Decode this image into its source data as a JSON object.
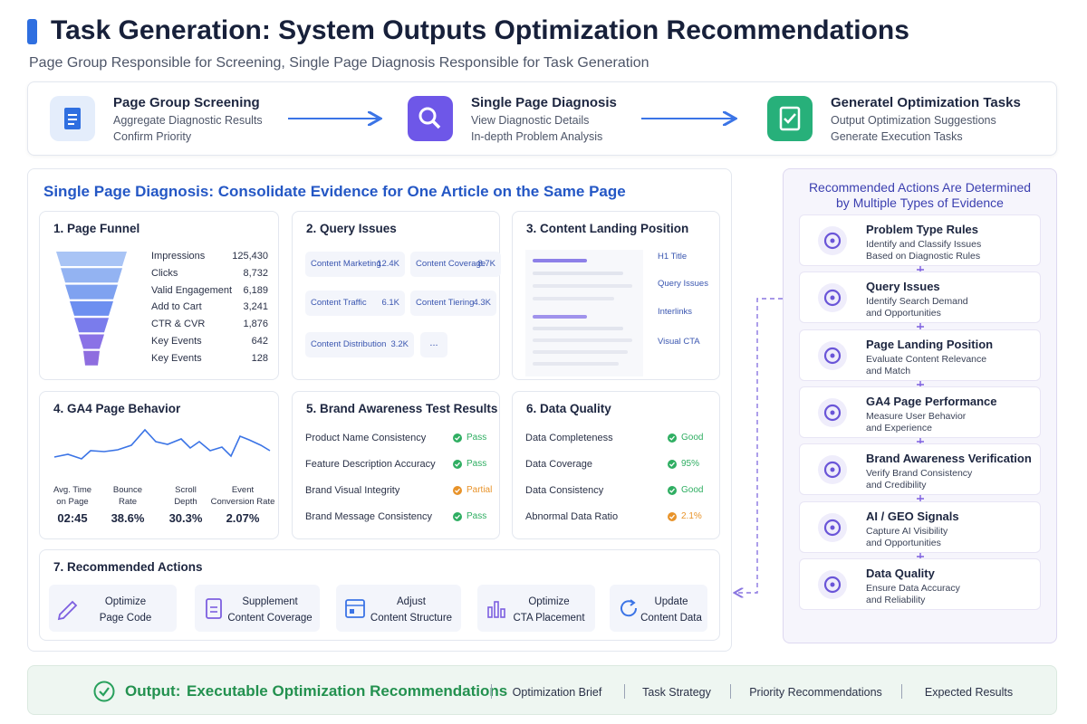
{
  "header": {
    "title": "Task Generation: System Outputs Optimization Recommendations",
    "subtitle": "Page Group Responsible for Screening, Single Page Diagnosis Responsible for Task Generation"
  },
  "flow": [
    {
      "title": "Page Group Screening",
      "lines": [
        "Aggregate Diagnostic Results",
        "Confirm Priority"
      ]
    },
    {
      "title": "Single Page Diagnosis",
      "lines": [
        "View Diagnostic Details",
        "In-depth Problem Analysis"
      ]
    },
    {
      "title": "Generatel Optimization Tasks",
      "lines": [
        "Output Optimization Suggestions",
        "Generate Execution Tasks"
      ]
    }
  ],
  "diagnosis": {
    "title": "Single Page Diagnosis: Consolidate Evidence for One Article on the Same Page",
    "funnel": {
      "title": "1. Page Funnel",
      "rows": [
        {
          "label": "Impressions",
          "value": "125,430"
        },
        {
          "label": "Clicks",
          "value": "8,732"
        },
        {
          "label": "Valid Engagement",
          "value": "6,189"
        },
        {
          "label": "Add to Cart",
          "value": "3,241"
        },
        {
          "label": "CTR & CVR",
          "value": "1,876"
        },
        {
          "label": "Key Events",
          "value": "642"
        },
        {
          "label": "Key Events",
          "value": "128"
        }
      ]
    },
    "query": {
      "title": "2. Query Issues",
      "items": [
        {
          "label": "Content Marketing",
          "value": "12.4K"
        },
        {
          "label": "Content Coverage",
          "value": "8.7K"
        },
        {
          "label": "Content Traffic",
          "value": "6.1K"
        },
        {
          "label": "Content Tiering",
          "value": "4.3K"
        },
        {
          "label": "Content Distribution",
          "value": "3.2K"
        }
      ],
      "more": "..."
    },
    "landing": {
      "title": "3. Content Landing Position",
      "labels": [
        "H1 Title",
        "Query Issues",
        "Interlinks",
        "Visual CTA"
      ]
    },
    "ga4": {
      "title": "4. GA4 Page Behavior",
      "metrics": [
        {
          "label": [
            "Avg. Time",
            "on Page"
          ],
          "value": "02:45"
        },
        {
          "label": [
            "Bounce",
            "Rate"
          ],
          "value": "38.6%"
        },
        {
          "label": [
            "Scroll",
            "Depth"
          ],
          "value": "30.3%"
        },
        {
          "label": [
            "Event",
            "Conversion Rate"
          ],
          "value": "2.07%"
        }
      ]
    },
    "brand": {
      "title": "5. Brand Awareness Test Results",
      "rows": [
        {
          "label": "Product Name Consistency",
          "status": "Pass",
          "color": "#2fae62"
        },
        {
          "label": "Feature Description Accuracy",
          "status": "Pass",
          "color": "#2fae62"
        },
        {
          "label": "Brand Visual Integrity",
          "status": "Partial",
          "color": "#e8932a"
        },
        {
          "label": "Brand Message Consistency",
          "status": "Pass",
          "color": "#2fae62"
        }
      ]
    },
    "quality": {
      "title": "6. Data Quality",
      "rows": [
        {
          "label": "Data Completeness",
          "status": "Good",
          "color": "#2fae62"
        },
        {
          "label": "Data Coverage",
          "status": "95%",
          "color": "#2fae62"
        },
        {
          "label": "Data Consistency",
          "status": "Good",
          "color": "#2fae62"
        },
        {
          "label": "Abnormal Data Ratio",
          "status": "2.1%",
          "color": "#e8932a"
        }
      ]
    },
    "actions": {
      "title": "7. Recommended Actions",
      "items": [
        [
          "Optimize",
          "Page Code"
        ],
        [
          "Supplement",
          "Content Coverage"
        ],
        [
          "Adjust",
          "Content Structure"
        ],
        [
          "Optimize",
          "CTA Placement"
        ],
        [
          "Update",
          "Content Data"
        ]
      ]
    }
  },
  "evidence": {
    "title": "Recommended Actions Are Determined by Multiple Types of Evidence",
    "items": [
      {
        "title": "Problem Type Rules",
        "lines": [
          "Identify and Classify Issues",
          "Based on Diagnostic Rules"
        ]
      },
      {
        "title": "Query Issues",
        "lines": [
          "Identify Search Demand",
          "and Opportunities"
        ]
      },
      {
        "title": "Page Landing Position",
        "lines": [
          "Evaluate Content Relevance",
          "and Match"
        ]
      },
      {
        "title": "GA4 Page Performance",
        "lines": [
          "Measure User Behavior",
          "and Experience"
        ]
      },
      {
        "title": "Brand Awareness Verification",
        "lines": [
          "Verify Brand Consistency",
          "and Credibility"
        ]
      },
      {
        "title": "AI / GEO Signals",
        "lines": [
          "Capture AI Visibility",
          "and Opportunities"
        ]
      },
      {
        "title": "Data Quality",
        "lines": [
          "Ensure Data Accuracy",
          "and Reliability"
        ]
      }
    ]
  },
  "output": {
    "label": "Output:",
    "title": "Executable Optimization Recommendations",
    "items": [
      "Optimization Brief",
      "Task Strategy",
      "Priority Recommendations",
      "Expected Results"
    ]
  }
}
